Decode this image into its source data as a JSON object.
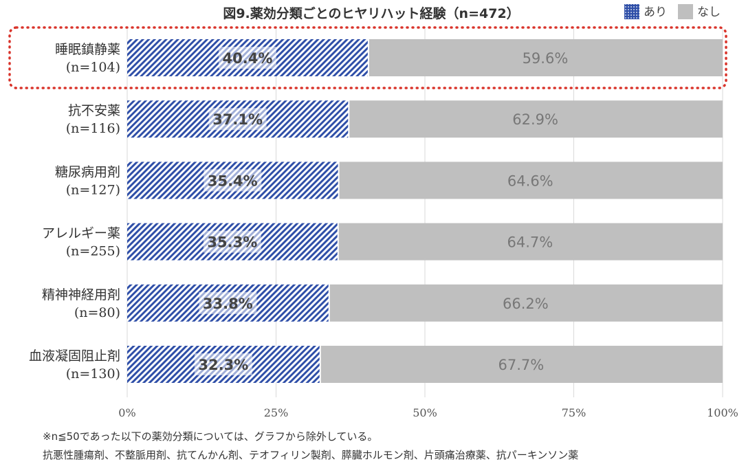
{
  "chart_data": {
    "type": "bar",
    "orientation": "horizontal",
    "stacked": true,
    "title": "図9.薬効分類ごとのヒヤリハット経験（n=472）",
    "categories": [
      {
        "name": "睡眠鎮静薬",
        "n": "(n=104)"
      },
      {
        "name": "抗不安薬",
        "n": "(n=116)"
      },
      {
        "name": "糖尿病用剤",
        "n": "(n=127)"
      },
      {
        "name": "アレルギー薬",
        "n": "(n=255)"
      },
      {
        "name": "精神神経用剤",
        "n": "(n=80)"
      },
      {
        "name": "血液凝固阻止剤",
        "n": "(n=130)"
      }
    ],
    "series": [
      {
        "name": "あり",
        "values": [
          40.4,
          37.1,
          35.4,
          35.3,
          33.8,
          32.3
        ],
        "labels": [
          "40.4%",
          "37.1%",
          "35.4%",
          "35.3%",
          "33.8%",
          "32.3%"
        ],
        "color": "#2f4fa8"
      },
      {
        "name": "なし",
        "values": [
          59.6,
          62.9,
          64.6,
          64.7,
          66.2,
          67.7
        ],
        "labels": [
          "59.6%",
          "62.9%",
          "64.6%",
          "64.7%",
          "66.2%",
          "67.7%"
        ],
        "color": "#bfbfbf"
      }
    ],
    "xlim": [
      0,
      100
    ],
    "x_ticks": [
      0,
      25,
      50,
      75,
      100
    ],
    "x_tick_labels": [
      "0%",
      "25%",
      "50%",
      "75%",
      "100%"
    ],
    "grid": true,
    "legend_position": "top-right",
    "highlight_category": "睡眠鎮静薬",
    "highlight_color": "#d9342b"
  },
  "notes": {
    "line1": "※n≦50であった以下の薬効分類については、グラフから除外している。",
    "line2": "抗悪性腫瘍剤、不整脈用剤、抗てんかん剤、テオフィリン製剤、膵臓ホルモン剤、片頭痛治療薬、抗パーキンソン薬"
  }
}
